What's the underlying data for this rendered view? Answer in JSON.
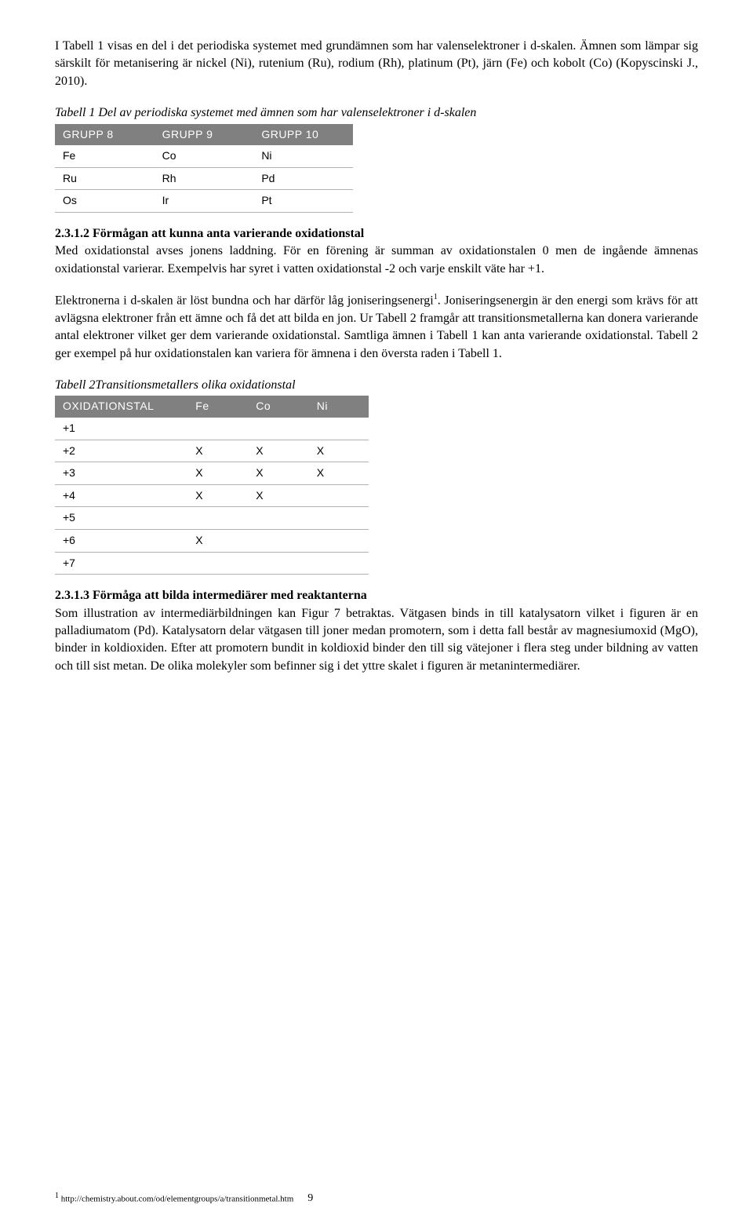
{
  "para1": "I Tabell 1 visas en del i det periodiska systemet med grundämnen som har valenselektroner i d-skalen. Ämnen som lämpar sig särskilt för metanisering är nickel (Ni), rutenium (Ru), rodium (Rh), platinum (Pt), järn (Fe) och kobolt (Co) (Kopyscinski J., 2010).",
  "table1": {
    "caption": "Tabell 1 Del av periodiska systemet med ämnen som har valenselektroner i d-skalen",
    "headers": [
      "GRUPP 8",
      "GRUPP 9",
      "GRUPP 10"
    ],
    "rows": [
      [
        "Fe",
        "Co",
        "Ni"
      ],
      [
        "Ru",
        "Rh",
        "Pd"
      ],
      [
        "Os",
        "Ir",
        "Pt"
      ]
    ]
  },
  "h1": "2.3.1.2 Förmågan att kunna anta varierande oxidationstal",
  "para2": "Med oxidationstal avses jonens laddning. För en förening är summan av oxidationstalen 0 men de ingående ämnenas oxidationstal varierar. Exempelvis har syret i vatten oxidationstal -2 och varje enskilt väte har +1.",
  "para3a": "Elektronerna i d-skalen är löst bundna och har därför låg joniseringsenergi",
  "sup1": "1",
  "para3b": ". Joniseringsenergin är den energi som krävs för att avlägsna elektroner från ett ämne och få det att bilda en jon. Ur Tabell 2 framgår att transitionsmetallerna kan donera varierande antal elektroner vilket ger dem varierande oxidationstal. Samtliga ämnen i Tabell 1 kan anta varierande oxidationstal. Tabell 2 ger exempel på hur oxidationstalen kan variera för ämnena i den översta raden i Tabell 1.",
  "table2": {
    "caption": "Tabell 2Transitionsmetallers olika oxidationstal",
    "headers": [
      "OXIDATIONSTAL",
      "Fe",
      "Co",
      "Ni"
    ],
    "rows": [
      [
        "+1",
        "",
        "",
        ""
      ],
      [
        "+2",
        "X",
        "X",
        "X"
      ],
      [
        "+3",
        "X",
        "X",
        "X"
      ],
      [
        "+4",
        "X",
        "X",
        ""
      ],
      [
        "+5",
        "",
        "",
        ""
      ],
      [
        "+6",
        "X",
        "",
        ""
      ],
      [
        "+7",
        "",
        "",
        ""
      ]
    ]
  },
  "h2": "2.3.1.3 Förmåga att bilda intermediärer med reaktanterna",
  "para4": "Som illustration av intermediärbildningen kan Figur 7 betraktas. Vätgasen binds in till katalysatorn vilket i figuren är en palladiumatom (Pd). Katalysatorn delar vätgasen till joner medan promotern, som i detta fall består av magnesiumoxid (MgO), binder in koldioxiden. Efter att promotern bundit in koldioxid binder den till sig vätejoner i flera steg under bildning av vatten och till sist metan. De olika molekyler som befinner sig i det yttre skalet i figuren är metanintermediärer.",
  "footer": {
    "note_marker": "1",
    "note_text": " http://chemistry.about.com/od/elementgroups/a/transitionmetal.htm",
    "pagenum": "9"
  }
}
